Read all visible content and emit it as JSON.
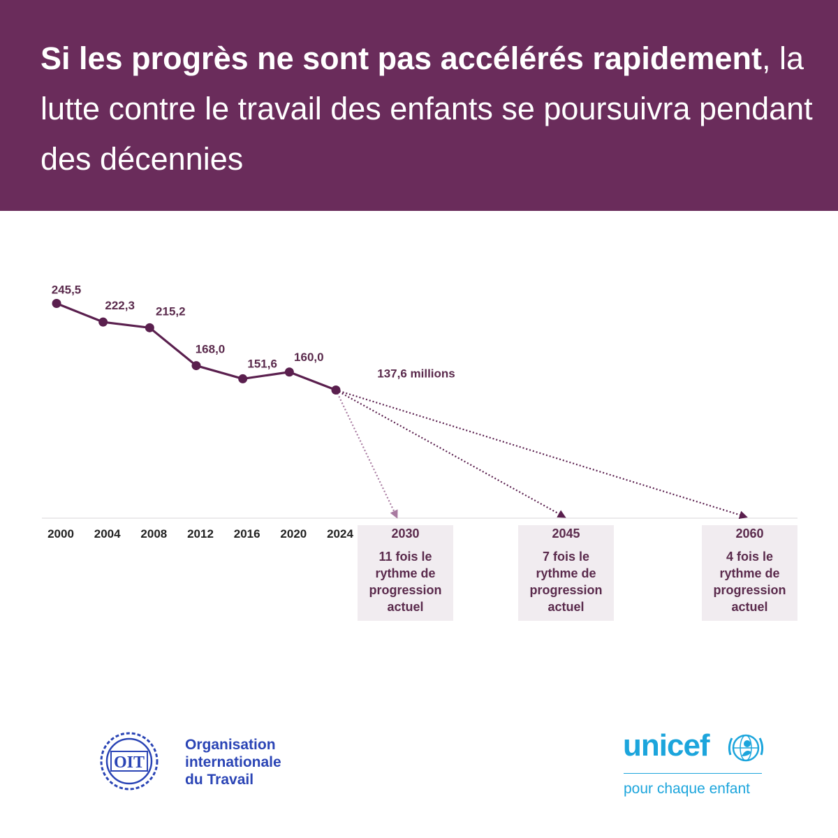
{
  "header": {
    "title_bold": "Si les progrès ne sont pas accélérés rapidement",
    "title_regular": ", la lutte contre le travail des enfants se poursuivra pendant des décennies",
    "background_color": "#6a2c5b"
  },
  "chart_data": {
    "type": "line",
    "x": [
      2000,
      2004,
      2008,
      2012,
      2016,
      2020,
      2024
    ],
    "tick_labels": [
      "2000",
      "2004",
      "2008",
      "2012",
      "2016",
      "2020",
      "2024"
    ],
    "series": [
      {
        "values": [
          245.5,
          222.3,
          215.2,
          168.0,
          151.6,
          160.0,
          137.6
        ],
        "data_labels": [
          "245,5",
          "222,3",
          "215,2",
          "168,0",
          "151,6",
          "160,0",
          "137,6 millions"
        ],
        "color": "#5a1f4e"
      }
    ],
    "projections": [
      {
        "year": 2030,
        "label": "2030",
        "target": 0,
        "text": "11 fois le rythme de progression actuel",
        "color": "#a87aa0"
      },
      {
        "year": 2045,
        "label": "2045",
        "target": 0,
        "text": "7 fois le rythme de progression actuel",
        "color": "#5a1f4e"
      },
      {
        "year": 2060,
        "label": "2060",
        "target": 0,
        "text": "4 fois le rythme de progression actuel",
        "color": "#5a1f4e"
      }
    ],
    "unit": "millions",
    "grid": false,
    "text_color": "#5a2a4c",
    "box_color": "#f1ecf0"
  },
  "logos": {
    "ilo": {
      "emblem_text": "OIT",
      "name_lines": [
        "Organisation",
        "internationale",
        "du Travail"
      ],
      "color": "#2a44b5"
    },
    "unicef": {
      "wordmark": "unicef",
      "tagline": "pour chaque enfant",
      "color": "#1ca5dc"
    }
  }
}
